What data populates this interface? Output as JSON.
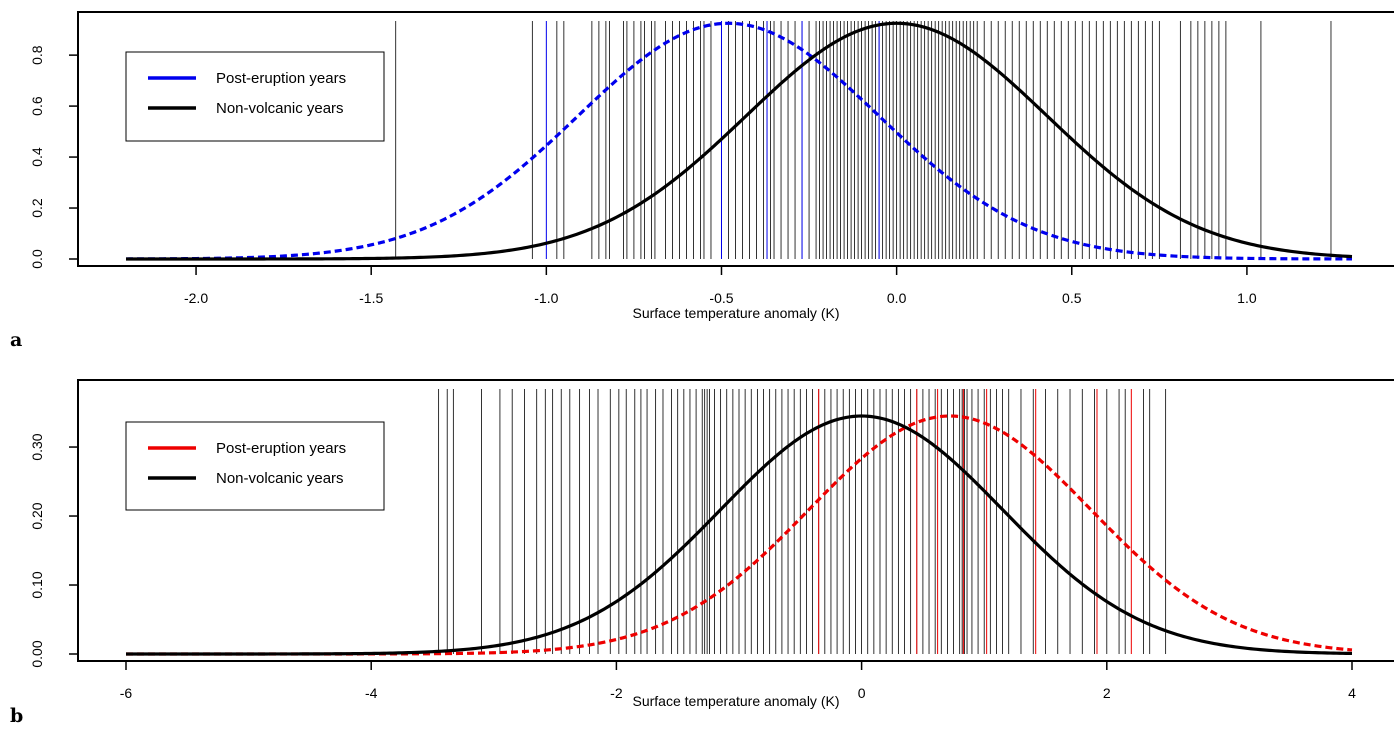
{
  "chart_data": [
    {
      "panel": "a",
      "type": "line",
      "xlabel": "Surface temperature anomaly (K)",
      "ylabel": "",
      "xlim": [
        -2.2,
        1.3
      ],
      "ylim": [
        0,
        0.93
      ],
      "xticks": [
        "-2.0",
        "-1.5",
        "-1.0",
        "-0.5",
        "0.0",
        "0.5",
        "1.0"
      ],
      "yticks": [
        "0.0",
        "0.2",
        "0.4",
        "0.6",
        "0.8"
      ],
      "legend_position": "top-left",
      "series": [
        {
          "name": "Post-eruption years",
          "color": "#0000ee",
          "style": "dashed",
          "dist": "normal",
          "mean": -0.48,
          "sd": 0.43,
          "peak": 0.925
        },
        {
          "name": "Non-volcanic years",
          "color": "#000000",
          "style": "solid",
          "dist": "normal",
          "mean": 0.0,
          "sd": 0.43,
          "peak": 0.925
        }
      ],
      "rug_color": "#000000",
      "rug_highlight_color": "#0000ee",
      "rug": [
        -1.43,
        -1.04,
        -0.97,
        -0.95,
        -0.87,
        -0.85,
        -0.83,
        -0.82,
        -0.78,
        -0.77,
        -0.75,
        -0.73,
        -0.72,
        -0.7,
        -0.69,
        -0.66,
        -0.64,
        -0.62,
        -0.6,
        -0.58,
        -0.56,
        -0.55,
        -0.53,
        -0.5,
        -0.48,
        -0.46,
        -0.44,
        -0.42,
        -0.4,
        -0.38,
        -0.36,
        -0.35,
        -0.33,
        -0.31,
        -0.29,
        -0.27,
        -0.25,
        -0.23,
        -0.22,
        -0.21,
        -0.2,
        -0.19,
        -0.18,
        -0.17,
        -0.16,
        -0.15,
        -0.14,
        -0.13,
        -0.12,
        -0.11,
        -0.1,
        -0.09,
        -0.08,
        -0.07,
        -0.06,
        -0.05,
        -0.04,
        -0.03,
        -0.02,
        -0.01,
        0.0,
        0.01,
        0.02,
        0.03,
        0.04,
        0.05,
        0.06,
        0.07,
        0.08,
        0.09,
        0.1,
        0.11,
        0.12,
        0.13,
        0.14,
        0.15,
        0.16,
        0.17,
        0.18,
        0.19,
        0.2,
        0.21,
        0.22,
        0.23,
        0.25,
        0.27,
        0.29,
        0.31,
        0.33,
        0.35,
        0.37,
        0.39,
        0.41,
        0.43,
        0.45,
        0.47,
        0.49,
        0.51,
        0.53,
        0.55,
        0.57,
        0.59,
        0.61,
        0.63,
        0.65,
        0.67,
        0.69,
        0.71,
        0.73,
        0.75,
        0.81,
        0.84,
        0.86,
        0.88,
        0.9,
        0.92,
        0.94,
        1.04,
        1.24
      ],
      "rug_highlight": [
        -1.0,
        -0.5,
        -0.37,
        -0.27,
        -0.05
      ]
    },
    {
      "panel": "b",
      "type": "line",
      "xlabel": "Surface temperature anomaly (K)",
      "ylabel": "",
      "xlim": [
        -6,
        4
      ],
      "ylim": [
        0,
        0.345
      ],
      "xticks": [
        "-6",
        "-4",
        "-2",
        "0",
        "2",
        "4"
      ],
      "yticks": [
        "0.00",
        "0.10",
        "0.20",
        "0.30"
      ],
      "legend_position": "top-left",
      "series": [
        {
          "name": "Post-eruption years",
          "color": "#ee0000",
          "style": "dashed",
          "dist": "normal",
          "mean": 0.72,
          "sd": 1.15,
          "peak": 0.345
        },
        {
          "name": "Non-volcanic years",
          "color": "#000000",
          "style": "solid",
          "dist": "normal",
          "mean": 0.0,
          "sd": 1.15,
          "peak": 0.345
        }
      ],
      "rug_color": "#000000",
      "rug_highlight_color": "#ee0000",
      "rug": [
        -3.45,
        -3.38,
        -3.33,
        -3.1,
        -2.95,
        -2.85,
        -2.75,
        -2.65,
        -2.58,
        -2.52,
        -2.45,
        -2.38,
        -2.3,
        -2.22,
        -2.15,
        -2.05,
        -1.98,
        -1.92,
        -1.85,
        -1.8,
        -1.75,
        -1.68,
        -1.62,
        -1.55,
        -1.5,
        -1.45,
        -1.4,
        -1.35,
        -1.3,
        -1.28,
        -1.26,
        -1.24,
        -1.2,
        -1.15,
        -1.1,
        -1.05,
        -1.0,
        -0.95,
        -0.9,
        -0.85,
        -0.8,
        -0.75,
        -0.7,
        -0.65,
        -0.6,
        -0.55,
        -0.5,
        -0.45,
        -0.4,
        -0.35,
        -0.3,
        -0.25,
        -0.2,
        -0.15,
        -0.1,
        -0.05,
        0.0,
        0.05,
        0.1,
        0.15,
        0.2,
        0.25,
        0.3,
        0.35,
        0.4,
        0.45,
        0.5,
        0.55,
        0.6,
        0.65,
        0.7,
        0.75,
        0.8,
        0.82,
        0.84,
        0.86,
        0.9,
        0.95,
        1.0,
        1.05,
        1.1,
        1.15,
        1.2,
        1.3,
        1.4,
        1.5,
        1.6,
        1.7,
        1.8,
        1.9,
        2.0,
        2.1,
        2.15,
        2.3,
        2.35,
        2.48
      ],
      "rug_highlight": [
        -0.35,
        0.45,
        0.62,
        0.83,
        1.02,
        1.42,
        1.92,
        2.2
      ]
    }
  ]
}
